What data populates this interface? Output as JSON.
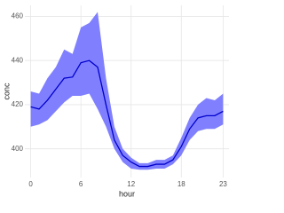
{
  "chart_data": {
    "type": "line",
    "xlabel": "hour",
    "ylabel": "conc",
    "x": [
      0,
      1,
      2,
      3,
      4,
      5,
      6,
      7,
      8,
      9,
      10,
      11,
      12,
      13,
      14,
      15,
      16,
      17,
      18,
      19,
      20,
      21,
      22,
      23
    ],
    "values": [
      419,
      418,
      422,
      427,
      432,
      432.5,
      439,
      440,
      437,
      420,
      404,
      397,
      394,
      392,
      392,
      393,
      393,
      395,
      401,
      409,
      414,
      415,
      415,
      417
    ],
    "upper": [
      426,
      425,
      432,
      437,
      445,
      443,
      455,
      457,
      462,
      432,
      410,
      400,
      396,
      393.5,
      393.5,
      395,
      395,
      397,
      405,
      414,
      420,
      423,
      422,
      425
    ],
    "lower": [
      410,
      411,
      413,
      417,
      421,
      424,
      424,
      425,
      418,
      410,
      400,
      394,
      391,
      390.5,
      390.5,
      391,
      391,
      393,
      397,
      404,
      408,
      409,
      409,
      411
    ],
    "color": "#0000cc",
    "band_color": "#8080ff",
    "xlim": [
      -0.7,
      23.7
    ],
    "ylim": [
      387,
      465
    ],
    "xticks": [
      0,
      6,
      12,
      18,
      23
    ],
    "yticks": [
      400,
      420,
      440,
      460
    ],
    "grid": true
  }
}
